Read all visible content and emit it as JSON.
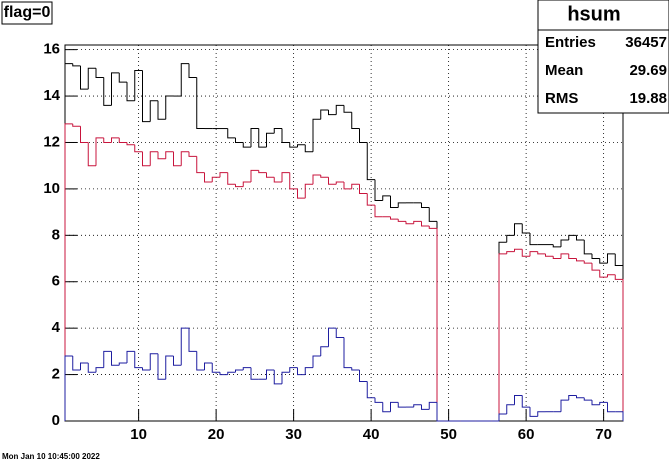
{
  "chart_data": {
    "type": "histogram",
    "title": "flag=0",
    "stats": {
      "title": "hsum",
      "rows": [
        [
          "Entries",
          36457
        ],
        [
          "Mean",
          29.69
        ],
        [
          "RMS",
          19.88
        ]
      ]
    },
    "footer": "Mon Jan 10 10:45:00 2022",
    "bins": [
      0.5,
      1.5,
      2.5,
      3.5,
      4.5,
      5.5,
      6.5,
      7.5,
      8.5,
      9.5,
      10.5,
      11.5,
      12.5,
      13.5,
      14.5,
      15.5,
      16.5,
      17.5,
      18.5,
      19.5,
      20.5,
      21.5,
      22.5,
      23.5,
      24.5,
      25.5,
      26.5,
      27.5,
      28.5,
      29.5,
      30.5,
      31.5,
      32.5,
      33.5,
      34.5,
      35.5,
      36.5,
      37.5,
      38.5,
      39.5,
      40.5,
      41.5,
      42.5,
      43.5,
      44.5,
      45.5,
      46.5,
      47.5,
      48.5,
      49.5,
      50.5,
      51.5,
      52.5,
      53.5,
      54.5,
      55.5,
      56.5,
      57.5,
      58.5,
      59.5,
      60.5,
      61.5,
      62.5,
      63.5,
      64.5,
      65.5,
      66.5,
      67.5,
      68.5,
      69.5,
      70.5,
      71.5,
      72.5
    ],
    "series": [
      {
        "color": "#000000",
        "values": [
          15.4,
          15.3,
          14.3,
          15.2,
          14.8,
          13.6,
          15.0,
          14.6,
          13.8,
          15.1,
          12.9,
          13.8,
          13.0,
          14.0,
          14.0,
          15.4,
          14.8,
          12.6,
          12.6,
          12.6,
          12.6,
          12.2,
          12.0,
          11.8,
          12.6,
          11.8,
          12.4,
          12.6,
          12.0,
          11.8,
          11.9,
          11.6,
          13.0,
          13.4,
          13.2,
          13.6,
          13.3,
          12.6,
          12.0,
          10.4,
          9.5,
          9.7,
          9.2,
          9.4,
          9.4,
          9.4,
          9.2,
          8.6,
          0,
          0,
          0,
          0,
          0,
          0,
          0,
          0,
          7.7,
          8.0,
          8.5,
          8.1,
          7.6,
          7.6,
          7.6,
          7.5,
          7.8,
          8.0,
          7.8,
          7.2,
          7.0,
          6.8,
          7.2,
          6.7
        ]
      },
      {
        "color": "#c8143c",
        "values": [
          12.8,
          12.7,
          12.0,
          11.0,
          12.2,
          12.0,
          12.2,
          12.0,
          11.9,
          11.6,
          11.0,
          11.6,
          11.3,
          11.6,
          11.0,
          11.6,
          11.4,
          10.7,
          10.3,
          10.5,
          10.7,
          10.2,
          10.1,
          10.3,
          10.8,
          10.7,
          10.5,
          10.3,
          10.7,
          10.0,
          9.6,
          10.2,
          10.6,
          10.5,
          10.2,
          10.3,
          10.0,
          10.2,
          9.8,
          9.3,
          8.8,
          8.8,
          8.7,
          8.6,
          8.5,
          8.6,
          8.4,
          8.3,
          0,
          0,
          0,
          0,
          0,
          0,
          0,
          0,
          7.2,
          7.3,
          7.4,
          7.1,
          7.3,
          7.2,
          7.1,
          7.0,
          7.2,
          7.0,
          6.9,
          6.8,
          6.5,
          6.2,
          6.3,
          6.1
        ]
      },
      {
        "color": "#1e1ea0",
        "values": [
          2.8,
          2.2,
          2.5,
          2.1,
          2.3,
          3.0,
          2.4,
          2.5,
          3.0,
          2.3,
          2.2,
          2.9,
          1.8,
          2.8,
          2.4,
          4.0,
          3.0,
          2.2,
          2.5,
          2.1,
          2.0,
          2.1,
          2.2,
          2.3,
          1.8,
          1.8,
          2.2,
          1.6,
          2.1,
          2.3,
          2.0,
          2.3,
          2.8,
          3.2,
          4.0,
          3.6,
          2.3,
          2.2,
          1.7,
          1.0,
          0.8,
          0.4,
          0.8,
          0.6,
          0.6,
          0.7,
          0.5,
          0.8,
          0,
          0,
          0,
          0,
          0,
          0,
          0,
          0,
          0.3,
          0.7,
          1.1,
          0.6,
          0.2,
          0.4,
          0.4,
          0.4,
          0.9,
          1.1,
          1.0,
          0.9,
          0.7,
          0.8,
          0.4,
          0.4
        ]
      }
    ],
    "xlim": [
      0.5,
      72.5
    ],
    "ylim": [
      0,
      16.2
    ],
    "xticks": [
      10,
      20,
      30,
      40,
      50,
      60,
      70
    ],
    "yticks": [
      0,
      2,
      4,
      6,
      8,
      10,
      12,
      14,
      16
    ],
    "grid": true
  }
}
